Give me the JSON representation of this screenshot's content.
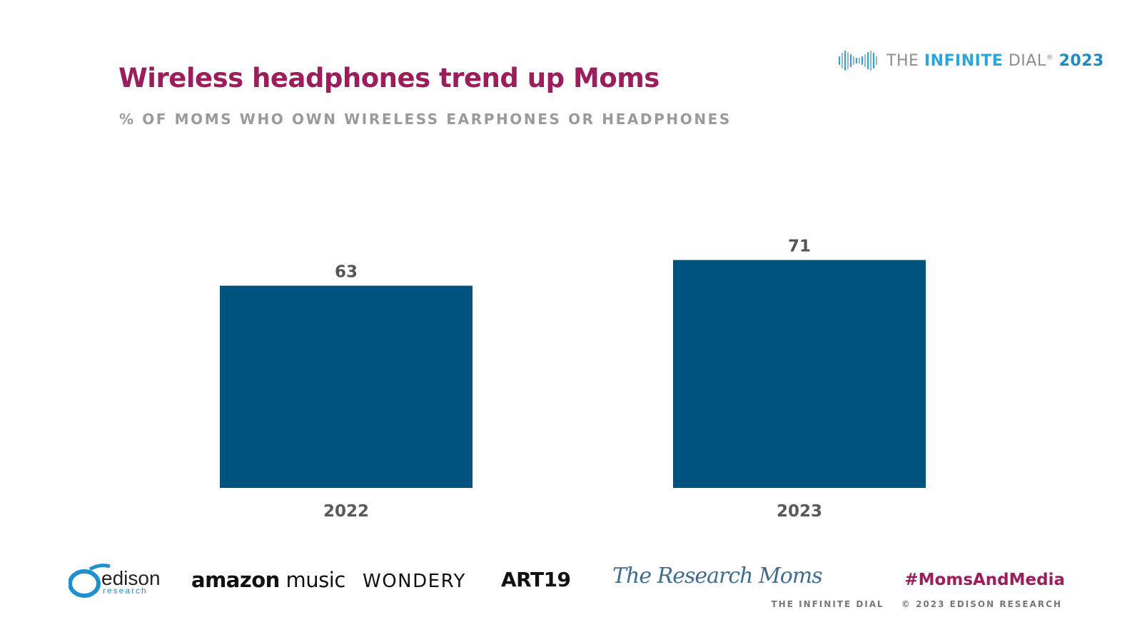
{
  "header": {
    "title": "Wireless headphones trend up Moms",
    "subtitle": "% OF MOMS WHO OWN WIRELESS EARPHONES OR HEADPHONES"
  },
  "brand": {
    "icon": "infinity-wave-icon",
    "the": "THE",
    "infinite": "INFINITE",
    "dial": "DIAL",
    "reg": "®",
    "year": "2023"
  },
  "colors": {
    "title": "#9c1d5c",
    "bar": "#00527f",
    "brand_blue": "#2aa5dd"
  },
  "chart_data": {
    "type": "bar",
    "categories": [
      "2022",
      "2023"
    ],
    "values": [
      63,
      71
    ],
    "ylim": [
      0,
      100
    ],
    "grid": false,
    "legend": "none"
  },
  "sponsors": {
    "edison": "edison",
    "edison_sub": "research",
    "amazon_a": "amazon",
    "amazon_b": "music",
    "wondery": "WONDERY",
    "art19": "ART19",
    "moms": "The Research Moms"
  },
  "footer": {
    "hashtag": "#MomsAndMedia",
    "left": "THE INFINITE DIAL",
    "right": "© 2023 EDISON RESEARCH"
  }
}
